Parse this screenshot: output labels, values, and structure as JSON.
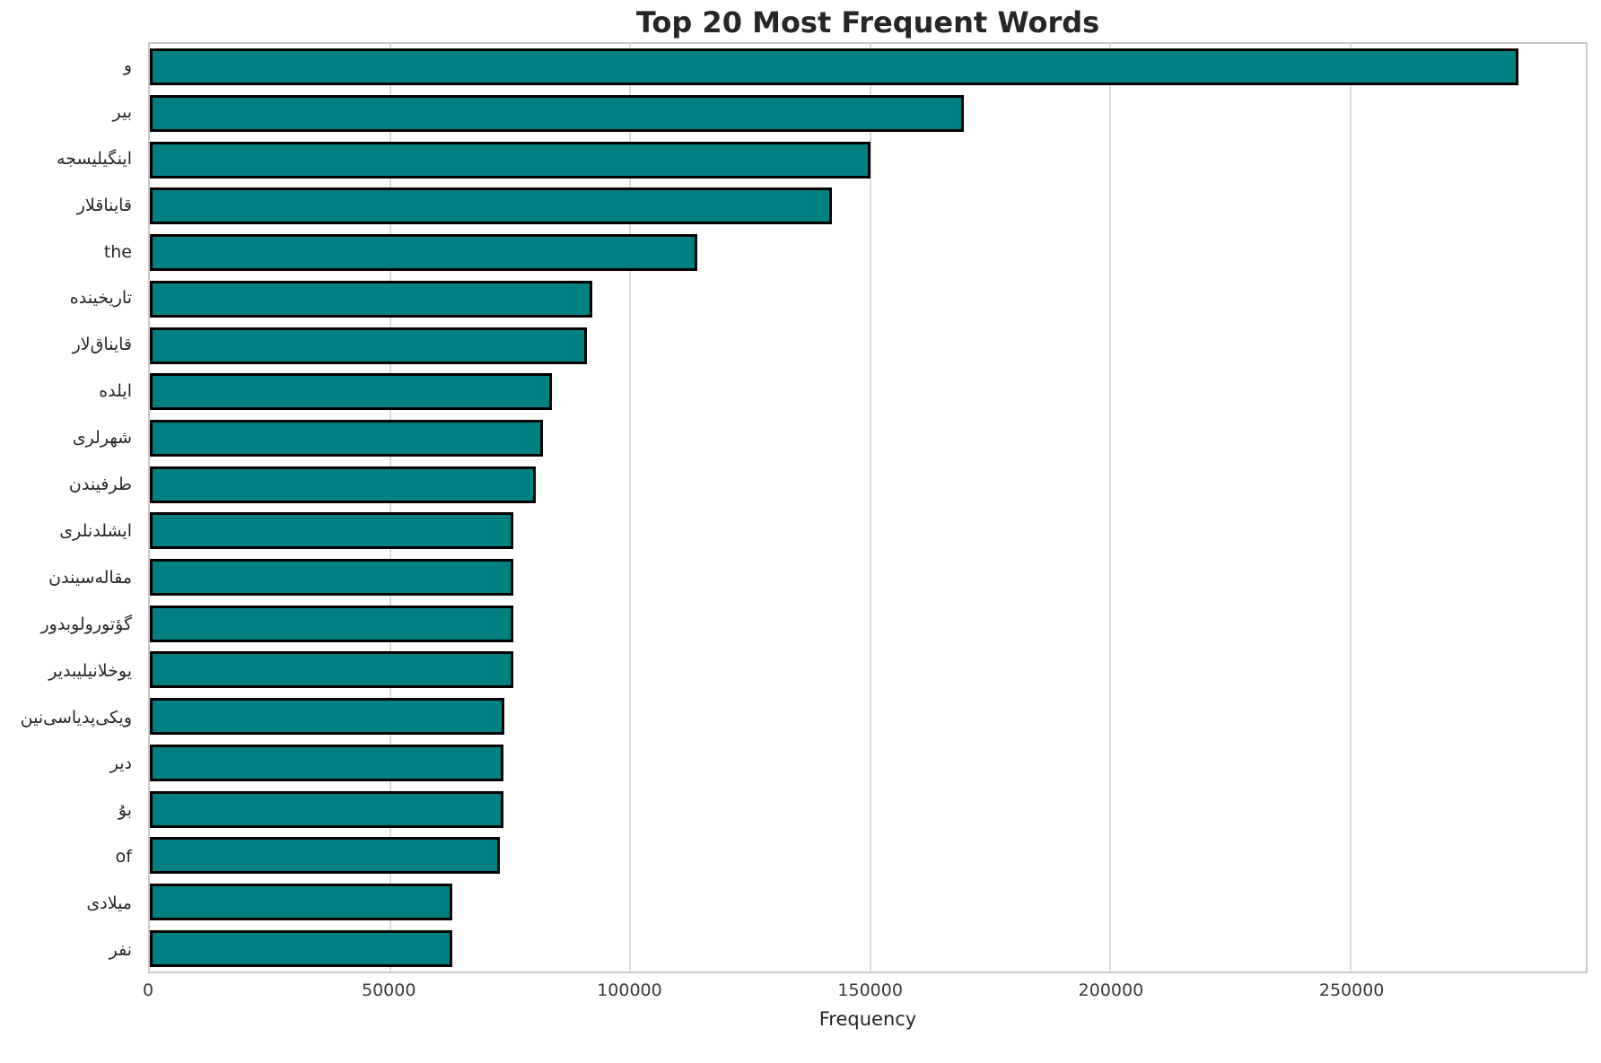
{
  "chart_data": {
    "type": "bar",
    "orientation": "horizontal",
    "title": "Top 20 Most Frequent Words",
    "xlabel": "Frequency",
    "ylabel": "",
    "xlim": [
      0,
      299000
    ],
    "xticks": [
      0,
      50000,
      100000,
      150000,
      200000,
      250000
    ],
    "grid": "vertical-major-gridlines",
    "legend": "none",
    "bar_color": "#008080",
    "bar_edge_color": "#000000",
    "categories": [
      "و",
      "بیر",
      "اینگیلیسجه",
      "قایناقلار",
      "the",
      "تاریخینده",
      "قایناق‌لار",
      "ایلده",
      "شهرلری",
      "طرفیندن",
      "ایشلدنلری",
      "مقاله‌سیندن",
      "گؤتورولوبدور",
      "یوخلانیلیبدیر",
      "ویکی‌پدیاسی‌نین",
      "دیر",
      "بۇ",
      "of",
      "میلادی",
      "نفر"
    ],
    "values": [
      285000,
      169500,
      150000,
      142000,
      114000,
      92200,
      91000,
      83800,
      81900,
      80300,
      75700,
      75600,
      75600,
      75600,
      73900,
      73700,
      73600,
      72800,
      63000,
      62900
    ]
  },
  "colors": {
    "background": "#ffffff",
    "grid": "#dcdcdc",
    "spine": "#c9c9c9",
    "title_text": "#262626",
    "tick_text": "#3a3a3a"
  }
}
